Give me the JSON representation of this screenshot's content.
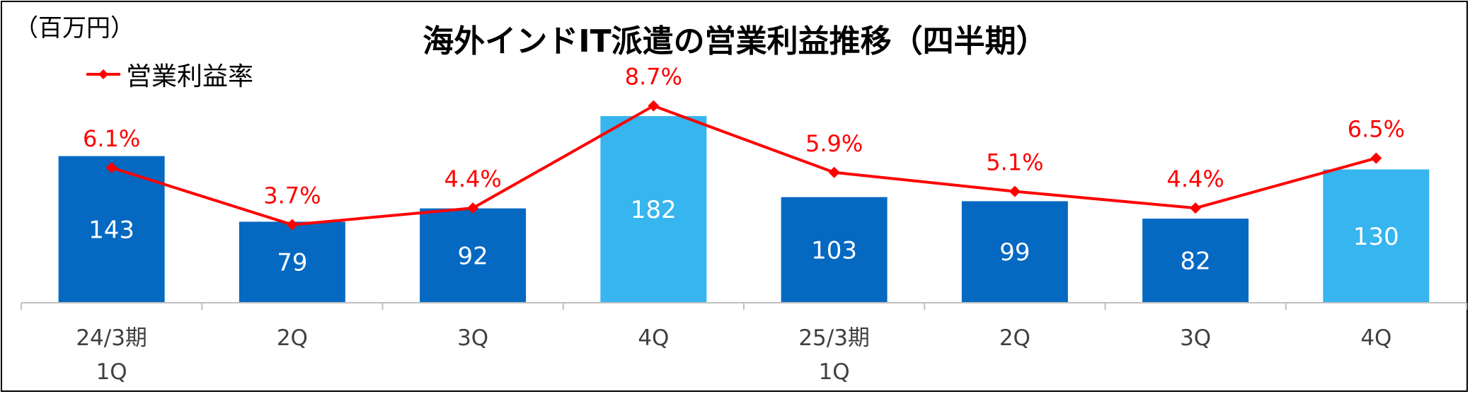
{
  "unit_label": "（百万円）",
  "colors": {
    "bar_dark": "#0569C2",
    "bar_light": "#36B5EE",
    "line": "#FF0000",
    "bar_label": "#FFFFFF",
    "axis": "#BFBFBF"
  },
  "chart_data": {
    "type": "bar",
    "title": "海外インドIT派遣の営業利益推移（四半期）",
    "categories": [
      [
        "24/3期",
        "1Q"
      ],
      [
        "2Q"
      ],
      [
        "3Q"
      ],
      [
        "4Q"
      ],
      [
        "25/3期",
        "1Q"
      ],
      [
        "2Q"
      ],
      [
        "3Q"
      ],
      [
        "4Q"
      ]
    ],
    "bar_colors": [
      "dark",
      "dark",
      "dark",
      "light",
      "dark",
      "dark",
      "dark",
      "light"
    ],
    "series": [
      {
        "type": "bar",
        "values": [
          143,
          79,
          92,
          182,
          103,
          99,
          82,
          130
        ]
      },
      {
        "type": "line",
        "name": "営業利益率",
        "values": [
          6.1,
          3.7,
          4.4,
          8.7,
          5.9,
          5.1,
          4.4,
          6.5
        ],
        "labels": [
          "6.1%",
          "3.7%",
          "4.4%",
          "8.7%",
          "5.9%",
          "5.1%",
          "4.4%",
          "6.5%"
        ],
        "marker": "diamond"
      }
    ],
    "y_bar_range": [
      0,
      200
    ],
    "y_line_range": [
      0,
      10
    ],
    "legend_position": "top-left",
    "grid": false
  }
}
